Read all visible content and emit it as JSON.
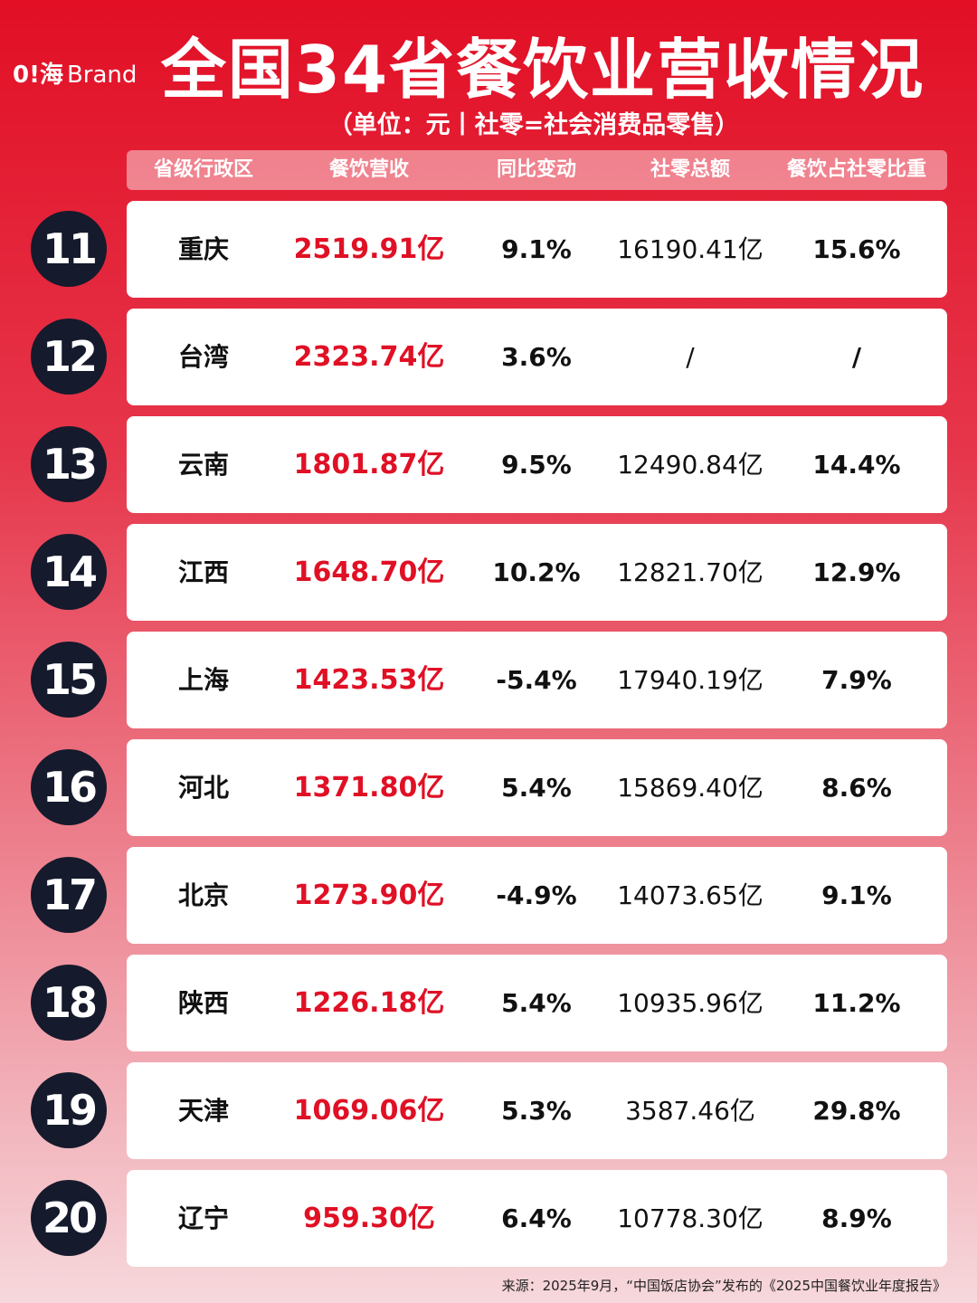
{
  "header": {
    "logo_mark": "0!海",
    "logo_text": "Brand",
    "title": "全国34省餐饮业营收情况",
    "subtitle": "（单位：元丨社零=社会消费品零售）"
  },
  "table": {
    "columns": [
      "省级行政区",
      "餐饮营收",
      "同比变动",
      "社零总额",
      "餐饮占社零比重"
    ],
    "rows": [
      {
        "rank": "11",
        "cells": [
          "重庆",
          "2519.91亿",
          "9.1%",
          "16190.41亿",
          "15.6%"
        ]
      },
      {
        "rank": "12",
        "cells": [
          "台湾",
          "2323.74亿",
          "3.6%",
          "/",
          "/"
        ]
      },
      {
        "rank": "13",
        "cells": [
          "云南",
          "1801.87亿",
          "9.5%",
          "12490.84亿",
          "14.4%"
        ]
      },
      {
        "rank": "14",
        "cells": [
          "江西",
          "1648.70亿",
          "10.2%",
          "12821.70亿",
          "12.9%"
        ]
      },
      {
        "rank": "15",
        "cells": [
          "上海",
          "1423.53亿",
          "-5.4%",
          "17940.19亿",
          "7.9%"
        ]
      },
      {
        "rank": "16",
        "cells": [
          "河北",
          "1371.80亿",
          "5.4%",
          "15869.40亿",
          "8.6%"
        ]
      },
      {
        "rank": "17",
        "cells": [
          "北京",
          "1273.90亿",
          "-4.9%",
          "14073.65亿",
          "9.1%"
        ]
      },
      {
        "rank": "18",
        "cells": [
          "陕西",
          "1226.18亿",
          "5.4%",
          "10935.96亿",
          "11.2%"
        ]
      },
      {
        "rank": "19",
        "cells": [
          "天津",
          "1069.06亿",
          "5.3%",
          "3587.46亿",
          "29.8%"
        ]
      },
      {
        "rank": "20",
        "cells": [
          "辽宁",
          "959.30亿",
          "6.4%",
          "10778.30亿",
          "8.9%"
        ]
      }
    ]
  },
  "footer": {
    "source": "来源：2025年9月，“中国饭店协会”发布的《2025中国餐饮业年度报告》"
  }
}
